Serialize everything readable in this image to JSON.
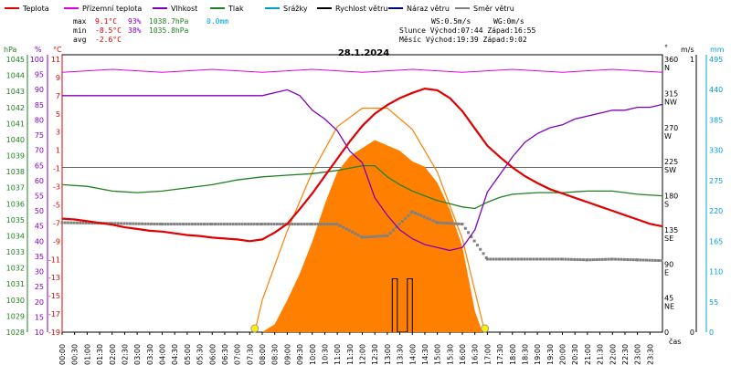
{
  "chart_data": {
    "type": "line",
    "date": "28.1.2024",
    "legend": [
      {
        "label": "Teplota",
        "color": "#e00000"
      },
      {
        "label": "Přízemní teplota",
        "color": "#e000e0"
      },
      {
        "label": "Vlhkost",
        "color": "#8000c0"
      },
      {
        "label": "Tlak",
        "color": "#208020"
      },
      {
        "label": "Srážky",
        "color": "#00a0d0"
      },
      {
        "label": "Rychlost větru",
        "color": "#000000"
      },
      {
        "label": "Náraz větru",
        "color": "#000080"
      },
      {
        "label": "Směr větru",
        "color": "#808080"
      }
    ],
    "stats": {
      "max_label": "max",
      "min_label": "min",
      "avg_label": "avg",
      "max_temp": "9.1°C",
      "max_hum": "93%",
      "max_press": "1038.7hPa",
      "max_rain": "0.0mm",
      "min_temp": "-8.5°C",
      "min_hum": "38%",
      "min_press": "1035.8hPa",
      "avg_temp": "-2.6°C"
    },
    "wind_info": {
      "ws": "WS:0.5m/s",
      "wg": "WG:0m/s"
    },
    "sun": {
      "line": "Slunce Východ:07:44  Západ:16:55"
    },
    "moon": {
      "line": "Měsíc  Východ:19:39  Západ:9:02"
    },
    "axis_labels": {
      "press_unit": "hPa",
      "hum_unit": "%",
      "temp_unit": "°C",
      "dir_unit": "°",
      "wind_unit": "m/s",
      "rain_unit": "mm",
      "x_unit": "čas"
    },
    "y_ticks_press": [
      "1045",
      "1044",
      "1043",
      "1042",
      "1041",
      "1040",
      "1039",
      "1038",
      "1037",
      "1036",
      "1035",
      "1034",
      "1033",
      "1032",
      "1031",
      "1030",
      "1029",
      "1028"
    ],
    "y_ticks_hum": [
      "100",
      "95",
      "90",
      "85",
      "80",
      "75",
      "70",
      "65",
      "60",
      "55",
      "50",
      "45",
      "40",
      "35",
      "30",
      "25",
      "20",
      "15",
      "10"
    ],
    "y_ticks_temp": [
      "11",
      "9",
      "7",
      "5",
      "3",
      "1",
      "-1",
      "-3",
      "-5",
      "-7",
      "-9",
      "-11",
      "-13",
      "-15",
      "-17",
      "-19"
    ],
    "dir_ticks": [
      {
        "deg": "360",
        "lbl": "N"
      },
      {
        "deg": "315",
        "lbl": "NW"
      },
      {
        "deg": "270",
        "lbl": "W"
      },
      {
        "deg": "225",
        "lbl": "SW"
      },
      {
        "deg": "180",
        "lbl": "S"
      },
      {
        "deg": "135",
        "lbl": "SE"
      },
      {
        "deg": "90",
        "lbl": "E"
      },
      {
        "deg": "45",
        "lbl": "NE"
      },
      {
        "deg": "0",
        "lbl": ""
      }
    ],
    "wind_ticks": [
      "1",
      "",
      "",
      "",
      "",
      "",
      "",
      "",
      "",
      "",
      "0"
    ],
    "rain_ticks": [
      "495",
      "440",
      "385",
      "330",
      "275",
      "220",
      "165",
      "110",
      "55",
      "0"
    ],
    "x_ticks": [
      "00:00",
      "00:30",
      "01:00",
      "01:30",
      "02:00",
      "02:30",
      "03:00",
      "03:30",
      "04:00",
      "04:30",
      "05:00",
      "05:30",
      "06:00",
      "06:30",
      "07:00",
      "07:30",
      "08:00",
      "08:30",
      "09:00",
      "09:30",
      "10:00",
      "10:30",
      "11:00",
      "11:30",
      "12:00",
      "12:30",
      "13:00",
      "13:30",
      "14:00",
      "14:30",
      "15:00",
      "15:30",
      "16:00",
      "16:30",
      "17:00",
      "17:30",
      "18:00",
      "18:30",
      "19:00",
      "19:30",
      "20:00",
      "20:30",
      "21:00",
      "21:30",
      "22:00",
      "22:30",
      "23:00",
      "23:30"
    ],
    "ylim_temp": [
      -19,
      13
    ],
    "ylim_hum": [
      10,
      105
    ],
    "ylim_press": [
      1028,
      1045.5
    ],
    "ylim_solar": [
      0,
      520
    ],
    "temperature": [
      [
        0,
        -5.9
      ],
      [
        0.5,
        -6.0
      ],
      [
        1,
        -6.2
      ],
      [
        1.5,
        -6.4
      ],
      [
        2,
        -6.6
      ],
      [
        2.5,
        -6.9
      ],
      [
        3,
        -7.1
      ],
      [
        3.5,
        -7.3
      ],
      [
        4,
        -7.4
      ],
      [
        4.5,
        -7.6
      ],
      [
        5,
        -7.8
      ],
      [
        5.5,
        -7.9
      ],
      [
        6,
        -8.1
      ],
      [
        6.5,
        -8.2
      ],
      [
        7,
        -8.3
      ],
      [
        7.5,
        -8.5
      ],
      [
        8,
        -8.3
      ],
      [
        8.5,
        -7.5
      ],
      [
        9,
        -6.5
      ],
      [
        9.5,
        -4.8
      ],
      [
        10,
        -3.0
      ],
      [
        10.5,
        -1.0
      ],
      [
        11,
        1.0
      ],
      [
        11.5,
        3.0
      ],
      [
        12,
        4.8
      ],
      [
        12.5,
        6.2
      ],
      [
        13,
        7.2
      ],
      [
        13.5,
        8.0
      ],
      [
        14,
        8.6
      ],
      [
        14.5,
        9.1
      ],
      [
        15,
        8.9
      ],
      [
        15.5,
        8.0
      ],
      [
        16,
        6.5
      ],
      [
        16.5,
        4.5
      ],
      [
        17,
        2.5
      ],
      [
        17.5,
        1.2
      ],
      [
        18,
        0.0
      ],
      [
        18.5,
        -1.0
      ],
      [
        19,
        -1.8
      ],
      [
        19.5,
        -2.5
      ],
      [
        20,
        -3.0
      ],
      [
        20.5,
        -3.5
      ],
      [
        21,
        -4.0
      ],
      [
        21.5,
        -4.5
      ],
      [
        22,
        -5.0
      ],
      [
        22.5,
        -5.5
      ],
      [
        23,
        -6.0
      ],
      [
        23.5,
        -6.5
      ],
      [
        24,
        -6.8
      ]
    ],
    "ground_temperature": [
      [
        0,
        99
      ],
      [
        2,
        100
      ],
      [
        4,
        99
      ],
      [
        6,
        100
      ],
      [
        8,
        99
      ],
      [
        10,
        100
      ],
      [
        12,
        99
      ],
      [
        14,
        100
      ],
      [
        16,
        99
      ],
      [
        18,
        100
      ],
      [
        20,
        99
      ],
      [
        22,
        100
      ],
      [
        24,
        99
      ]
    ],
    "humidity": [
      [
        0,
        91
      ],
      [
        1,
        91
      ],
      [
        2,
        91
      ],
      [
        3,
        91
      ],
      [
        4,
        91
      ],
      [
        5,
        91
      ],
      [
        6,
        91
      ],
      [
        7,
        91
      ],
      [
        8,
        91
      ],
      [
        8.5,
        92
      ],
      [
        9,
        93
      ],
      [
        9.5,
        91
      ],
      [
        10,
        86
      ],
      [
        10.5,
        83
      ],
      [
        11,
        79
      ],
      [
        11.5,
        72
      ],
      [
        12,
        68
      ],
      [
        12.5,
        56
      ],
      [
        13,
        50
      ],
      [
        13.5,
        45
      ],
      [
        14,
        42
      ],
      [
        14.5,
        40
      ],
      [
        15,
        39
      ],
      [
        15.5,
        38
      ],
      [
        16,
        39
      ],
      [
        16.5,
        45
      ],
      [
        17,
        58
      ],
      [
        17.5,
        64
      ],
      [
        18,
        70
      ],
      [
        18.5,
        75
      ],
      [
        19,
        78
      ],
      [
        19.5,
        80
      ],
      [
        20,
        81
      ],
      [
        20.5,
        83
      ],
      [
        21,
        84
      ],
      [
        21.5,
        85
      ],
      [
        22,
        86
      ],
      [
        22.5,
        86
      ],
      [
        23,
        87
      ],
      [
        23.5,
        87
      ],
      [
        24,
        88
      ]
    ],
    "pressure": [
      [
        0,
        1037.3
      ],
      [
        1,
        1037.2
      ],
      [
        2,
        1036.9
      ],
      [
        3,
        1036.8
      ],
      [
        4,
        1036.9
      ],
      [
        5,
        1037.1
      ],
      [
        6,
        1037.3
      ],
      [
        7,
        1037.6
      ],
      [
        8,
        1037.8
      ],
      [
        9,
        1037.9
      ],
      [
        10,
        1038.0
      ],
      [
        11,
        1038.2
      ],
      [
        12,
        1038.5
      ],
      [
        12.5,
        1038.5
      ],
      [
        13,
        1037.8
      ],
      [
        13.5,
        1037.3
      ],
      [
        14,
        1036.9
      ],
      [
        14.5,
        1036.6
      ],
      [
        15,
        1036.3
      ],
      [
        15.5,
        1036.1
      ],
      [
        16,
        1035.9
      ],
      [
        16.5,
        1035.8
      ],
      [
        17,
        1036.2
      ],
      [
        17.5,
        1036.5
      ],
      [
        18,
        1036.7
      ],
      [
        19,
        1036.8
      ],
      [
        20,
        1036.8
      ],
      [
        21,
        1036.9
      ],
      [
        22,
        1036.9
      ],
      [
        23,
        1036.7
      ],
      [
        24,
        1036.6
      ]
    ],
    "wind_direction": [
      [
        0,
        150
      ],
      [
        2,
        149
      ],
      [
        4,
        148
      ],
      [
        6,
        148
      ],
      [
        8,
        148
      ],
      [
        10,
        148
      ],
      [
        11,
        148
      ],
      [
        12,
        130
      ],
      [
        13,
        132
      ],
      [
        14,
        165
      ],
      [
        15,
        150
      ],
      [
        16,
        148
      ],
      [
        17,
        100
      ],
      [
        18,
        100
      ],
      [
        19,
        100
      ],
      [
        20,
        100
      ],
      [
        21,
        99
      ],
      [
        22,
        100
      ],
      [
        23,
        99
      ],
      [
        24,
        98
      ]
    ],
    "solar_max": [
      [
        7.7,
        0
      ],
      [
        8,
        60
      ],
      [
        9,
        190
      ],
      [
        10,
        300
      ],
      [
        11,
        385
      ],
      [
        12,
        420
      ],
      [
        13,
        420
      ],
      [
        14,
        380
      ],
      [
        15,
        300
      ],
      [
        16,
        175
      ],
      [
        16.9,
        0
      ]
    ],
    "solar": [
      [
        8,
        0
      ],
      [
        8.5,
        15
      ],
      [
        9,
        60
      ],
      [
        9.5,
        110
      ],
      [
        10,
        170
      ],
      [
        10.5,
        240
      ],
      [
        11,
        300
      ],
      [
        11.5,
        330
      ],
      [
        12,
        345
      ],
      [
        12.5,
        360
      ],
      [
        13,
        350
      ],
      [
        13.5,
        340
      ],
      [
        14,
        320
      ],
      [
        14.5,
        310
      ],
      [
        15,
        280
      ],
      [
        15.5,
        230
      ],
      [
        16,
        160
      ],
      [
        16.5,
        40
      ],
      [
        16.8,
        0
      ]
    ],
    "rain_events": [
      [
        13.2,
        0
      ],
      [
        13.2,
        100
      ],
      [
        13.4,
        100
      ],
      [
        13.4,
        0
      ],
      [
        13.8,
        0
      ],
      [
        13.8,
        100
      ],
      [
        14,
        100
      ],
      [
        14,
        0
      ]
    ]
  }
}
